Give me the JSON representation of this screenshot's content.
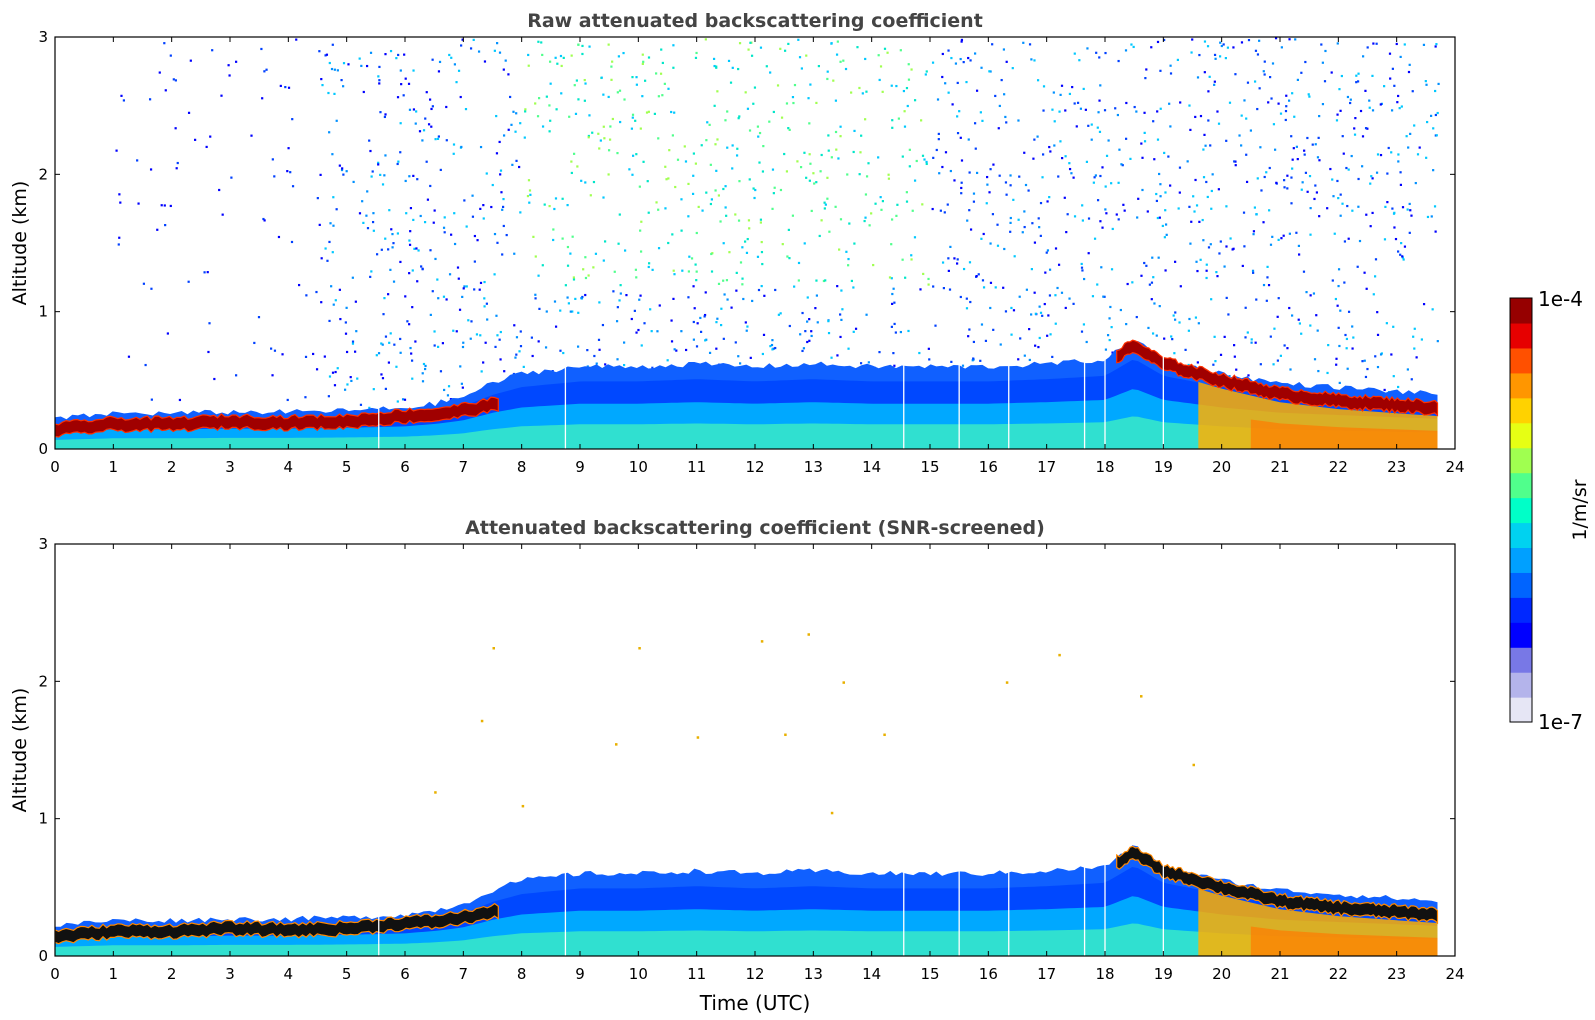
{
  "chart_data": [
    {
      "type": "heatmap",
      "title": "Raw attenuated backscattering coefficient",
      "xlabel": "",
      "ylabel": "Altitude (km)",
      "xlim": [
        0,
        24
      ],
      "ylim": [
        0,
        3
      ],
      "xticks": [
        "0",
        "1",
        "2",
        "3",
        "4",
        "5",
        "6",
        "7",
        "8",
        "9",
        "10",
        "11",
        "12",
        "13",
        "14",
        "15",
        "16",
        "17",
        "18",
        "19",
        "20",
        "21",
        "22",
        "23",
        "24"
      ],
      "yticks": [
        "0",
        "1",
        "2",
        "3"
      ],
      "data_end_hour": 23.7,
      "gap_times_hours": [
        5.55,
        8.75,
        14.55,
        15.5,
        16.35,
        17.65,
        18.0,
        19.0
      ],
      "layer_top_km": {
        "hours": [
          0,
          1,
          2,
          3,
          4,
          5,
          6,
          6.5,
          7,
          7.5,
          8,
          9,
          10,
          11,
          12,
          13,
          14,
          15,
          16,
          17,
          18,
          18.5,
          19,
          20,
          21,
          22,
          23,
          23.7
        ],
        "values": [
          0.22,
          0.26,
          0.26,
          0.27,
          0.27,
          0.28,
          0.3,
          0.33,
          0.38,
          0.48,
          0.55,
          0.6,
          0.6,
          0.62,
          0.6,
          0.62,
          0.6,
          0.6,
          0.6,
          0.62,
          0.65,
          0.8,
          0.65,
          0.55,
          0.48,
          0.45,
          0.42,
          0.4
        ]
      },
      "aerosol_peak_layer_km": {
        "hours": [
          0,
          1,
          2,
          3,
          4,
          5,
          6,
          6.5,
          7,
          7.5,
          18.2,
          18.5,
          19,
          20,
          21,
          22,
          23,
          23.7
        ],
        "values": [
          0.14,
          0.18,
          0.18,
          0.2,
          0.19,
          0.2,
          0.24,
          0.25,
          0.28,
          0.32,
          0.68,
          0.75,
          0.62,
          0.5,
          0.4,
          0.35,
          0.32,
          0.3
        ]
      },
      "noise_region": {
        "start_hour": 4.5,
        "end_hour": 23.7,
        "max_km": 3.0
      }
    },
    {
      "type": "heatmap",
      "title": "Attenuated backscattering coefficient (SNR-screened)",
      "xlabel": "Time (UTC)",
      "ylabel": "Altitude (km)",
      "xlim": [
        0,
        24
      ],
      "ylim": [
        0,
        3
      ],
      "xticks": [
        "0",
        "1",
        "2",
        "3",
        "4",
        "5",
        "6",
        "7",
        "8",
        "9",
        "10",
        "11",
        "12",
        "13",
        "14",
        "15",
        "16",
        "17",
        "18",
        "19",
        "20",
        "21",
        "22",
        "23",
        "24"
      ],
      "yticks": [
        "0",
        "1",
        "2",
        "3"
      ],
      "data_end_hour": 23.7,
      "gap_times_hours": [
        5.55,
        8.75,
        14.55,
        15.5,
        16.35,
        17.65,
        18.0,
        19.0
      ],
      "layer_top_km": {
        "hours": [
          0,
          1,
          2,
          3,
          4,
          5,
          6,
          6.5,
          7,
          7.5,
          8,
          9,
          10,
          11,
          12,
          13,
          14,
          15,
          16,
          17,
          18,
          18.5,
          19,
          20,
          21,
          22,
          23,
          23.7
        ],
        "values": [
          0.22,
          0.26,
          0.26,
          0.27,
          0.27,
          0.28,
          0.3,
          0.33,
          0.38,
          0.48,
          0.55,
          0.6,
          0.6,
          0.62,
          0.6,
          0.62,
          0.6,
          0.6,
          0.6,
          0.62,
          0.65,
          0.8,
          0.65,
          0.55,
          0.48,
          0.45,
          0.42,
          0.4
        ]
      },
      "aerosol_peak_layer_km": {
        "hours": [
          0,
          1,
          2,
          3,
          4,
          5,
          6,
          6.5,
          7,
          7.5,
          18.2,
          18.5,
          19,
          20,
          21,
          22,
          23,
          23.7
        ],
        "values": [
          0.14,
          0.18,
          0.18,
          0.2,
          0.19,
          0.2,
          0.24,
          0.25,
          0.28,
          0.32,
          0.68,
          0.75,
          0.62,
          0.5,
          0.4,
          0.35,
          0.32,
          0.3
        ]
      },
      "scattered_points": [
        {
          "hour": 7.5,
          "km": 2.25
        },
        {
          "hour": 10.0,
          "km": 2.25
        },
        {
          "hour": 12.1,
          "km": 2.3
        },
        {
          "hour": 12.9,
          "km": 2.35
        },
        {
          "hour": 7.3,
          "km": 1.72
        },
        {
          "hour": 9.6,
          "km": 1.55
        },
        {
          "hour": 11.0,
          "km": 1.6
        },
        {
          "hour": 12.5,
          "km": 1.62
        },
        {
          "hour": 14.2,
          "km": 1.62
        },
        {
          "hour": 13.5,
          "km": 2.0
        },
        {
          "hour": 16.3,
          "km": 2.0
        },
        {
          "hour": 17.2,
          "km": 2.2
        },
        {
          "hour": 18.6,
          "km": 1.9
        },
        {
          "hour": 6.5,
          "km": 1.2
        },
        {
          "hour": 8.0,
          "km": 1.1
        },
        {
          "hour": 13.3,
          "km": 1.05
        },
        {
          "hour": 19.5,
          "km": 1.4
        }
      ]
    }
  ],
  "colorbar": {
    "max_label": "1e-4",
    "min_label": "1e-7",
    "label": "1/m/sr",
    "colors": [
      "#e6e6f5",
      "#b4b4eb",
      "#7878e6",
      "#0000ff",
      "#0028ff",
      "#0064ff",
      "#00a0ff",
      "#00d2f0",
      "#00ffc8",
      "#50ff8c",
      "#a0ff50",
      "#e6ff14",
      "#ffd200",
      "#ff9600",
      "#ff5000",
      "#e60000",
      "#960000"
    ]
  }
}
